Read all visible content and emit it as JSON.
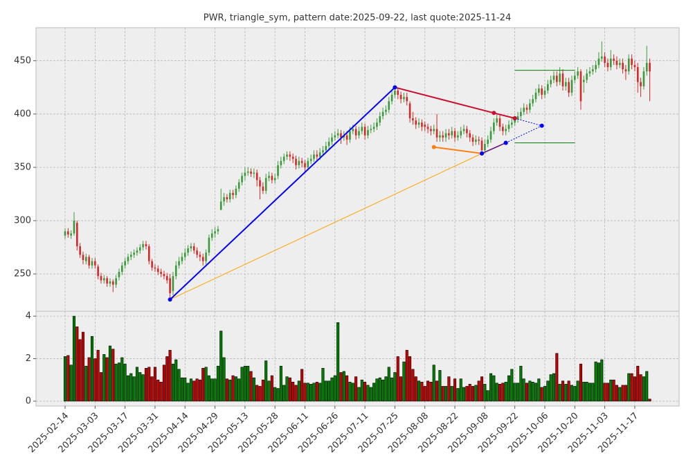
{
  "chart_data": {
    "type": "candlestick",
    "title": "PWR, triangle_sym, pattern date:2025-09-22, last quote:2025-11-24",
    "up_color": "#3a9a3a",
    "down_color": "#d62728",
    "volume_up_color": "#008000",
    "volume_down_color": "#cc0000",
    "grid": true,
    "xlim": [
      -9.7,
      204.8
    ],
    "xticks": [
      {
        "value": 0,
        "label": "2025-02-14"
      },
      {
        "value": 10,
        "label": "2025-03-03"
      },
      {
        "value": 20,
        "label": "2025-03-17"
      },
      {
        "value": 30,
        "label": "2025-03-31"
      },
      {
        "value": 40,
        "label": "2025-04-14"
      },
      {
        "value": 50,
        "label": "2025-04-29"
      },
      {
        "value": 60,
        "label": "2025-05-13"
      },
      {
        "value": 70,
        "label": "2025-05-28"
      },
      {
        "value": 80,
        "label": "2025-06-11"
      },
      {
        "value": 90,
        "label": "2025-06-26"
      },
      {
        "value": 100,
        "label": "2025-07-11"
      },
      {
        "value": 110,
        "label": "2025-07-25"
      },
      {
        "value": 120,
        "label": "2025-08-08"
      },
      {
        "value": 130,
        "label": "2025-08-22"
      },
      {
        "value": 140,
        "label": "2025-09-08"
      },
      {
        "value": 150,
        "label": "2025-09-22"
      },
      {
        "value": 160,
        "label": "2025-10-06"
      },
      {
        "value": 170,
        "label": "2025-10-20"
      },
      {
        "value": 180,
        "label": "2025-11-03"
      },
      {
        "value": 190,
        "label": "2025-11-17"
      }
    ],
    "ylim": [
      215,
      481
    ],
    "yticks": [
      250,
      300,
      350,
      400,
      450
    ],
    "volume_ylim": [
      -0.23,
      4.23
    ],
    "volume_yticks": [
      0,
      2,
      4
    ],
    "open": [
      286,
      290,
      286,
      288,
      298,
      276,
      268,
      262,
      266,
      258,
      262,
      257,
      248,
      244,
      246,
      241,
      243,
      240,
      247,
      252,
      258,
      262,
      266,
      268,
      270,
      272,
      275,
      278,
      276,
      262,
      256,
      255,
      252,
      250,
      248,
      246,
      234,
      248,
      258,
      262,
      266,
      270,
      274,
      276,
      272,
      268,
      266,
      262,
      270,
      284,
      288,
      290,
      310,
      318,
      322,
      320,
      326,
      324,
      330,
      336,
      342,
      345,
      346,
      344,
      345,
      338,
      332,
      328,
      340,
      342,
      338,
      342,
      352,
      356,
      360,
      362,
      360,
      358,
      352,
      356,
      354,
      350,
      356,
      358,
      362,
      360,
      364,
      366,
      370,
      374,
      378,
      380,
      382,
      378,
      380,
      376,
      384,
      386,
      380,
      384,
      388,
      380,
      385,
      386,
      388,
      392,
      398,
      402,
      404,
      412,
      418,
      422,
      418,
      414,
      416,
      410,
      396,
      394,
      390,
      392,
      390,
      388,
      386,
      384,
      386,
      378,
      380,
      378,
      382,
      380,
      384,
      378,
      380,
      384,
      386,
      382,
      378,
      374,
      376,
      375,
      366,
      372,
      376,
      384,
      392,
      396,
      388,
      384,
      386,
      390,
      392,
      395,
      398,
      402,
      406,
      404,
      410,
      414,
      420,
      424,
      418,
      422,
      428,
      432,
      436,
      430,
      438,
      426,
      430,
      420,
      432,
      436,
      440,
      430,
      432,
      438,
      440,
      442,
      446,
      452,
      454,
      448,
      444,
      452,
      450,
      446,
      448,
      442,
      440,
      452,
      446,
      444,
      430,
      426,
      440,
      448
    ],
    "high": [
      293,
      293,
      291,
      308,
      300,
      279,
      271,
      269,
      268,
      265,
      265,
      259,
      251,
      249,
      248,
      246,
      245,
      249,
      255,
      261,
      265,
      269,
      271,
      273,
      275,
      278,
      281,
      281,
      278,
      264,
      259,
      258,
      255,
      253,
      251,
      250,
      252,
      262,
      266,
      270,
      274,
      277,
      279,
      279,
      275,
      271,
      269,
      273,
      287,
      292,
      294,
      295,
      330,
      326,
      325,
      329,
      329,
      333,
      339,
      345,
      350,
      350,
      349,
      349,
      348,
      341,
      336,
      344,
      346,
      345,
      344,
      356,
      360,
      363,
      365,
      365,
      363,
      361,
      360,
      359,
      357,
      359,
      362,
      366,
      366,
      368,
      370,
      374,
      378,
      382,
      384,
      386,
      385,
      384,
      384,
      388,
      390,
      389,
      388,
      392,
      391,
      389,
      390,
      392,
      396,
      402,
      406,
      408,
      416,
      422,
      426,
      425,
      421,
      420,
      420,
      412,
      402,
      397,
      396,
      395,
      393,
      391,
      389,
      390,
      400,
      384,
      384,
      386,
      386,
      388,
      387,
      384,
      388,
      390,
      389,
      385,
      381,
      380,
      379,
      378,
      376,
      380,
      388,
      396,
      400,
      399,
      391,
      390,
      394,
      396,
      398,
      402,
      406,
      410,
      409,
      414,
      418,
      424,
      428,
      427,
      426,
      432,
      436,
      440,
      440,
      444,
      442,
      434,
      434,
      436,
      440,
      444,
      442,
      436,
      442,
      444,
      446,
      450,
      458,
      468,
      458,
      452,
      460,
      456,
      454,
      452,
      452,
      446,
      456,
      456,
      450,
      448,
      434,
      444,
      464,
      452
    ],
    "low": [
      283,
      284,
      283,
      286,
      272,
      265,
      259,
      259,
      255,
      255,
      255,
      245,
      241,
      241,
      238,
      238,
      233,
      237,
      244,
      249,
      255,
      259,
      263,
      265,
      267,
      269,
      272,
      273,
      259,
      253,
      252,
      249,
      247,
      245,
      241,
      226,
      230,
      245,
      255,
      259,
      263,
      267,
      271,
      269,
      265,
      262,
      258,
      259,
      267,
      281,
      284,
      287,
      310,
      314,
      317,
      317,
      320,
      321,
      327,
      333,
      338,
      342,
      341,
      340,
      332,
      320,
      325,
      325,
      337,
      335,
      335,
      339,
      349,
      353,
      357,
      356,
      354,
      348,
      349,
      350,
      346,
      347,
      353,
      355,
      357,
      357,
      361,
      363,
      367,
      371,
      375,
      377,
      372,
      375,
      371,
      373,
      381,
      376,
      377,
      381,
      376,
      377,
      382,
      383,
      385,
      389,
      395,
      399,
      401,
      409,
      415,
      414,
      410,
      411,
      408,
      392,
      390,
      386,
      387,
      384,
      384,
      382,
      380,
      381,
      374,
      374,
      374,
      374,
      376,
      377,
      374,
      375,
      377,
      381,
      378,
      374,
      370,
      371,
      371,
      362,
      363,
      369,
      373,
      381,
      389,
      384,
      380,
      380,
      383,
      387,
      389,
      392,
      395,
      399,
      400,
      401,
      407,
      411,
      417,
      414,
      415,
      419,
      425,
      429,
      426,
      427,
      422,
      422,
      416,
      417,
      429,
      433,
      404,
      420,
      429,
      435,
      437,
      439,
      443,
      449,
      444,
      440,
      441,
      446,
      442,
      443,
      438,
      432,
      437,
      442,
      440,
      420,
      416,
      423,
      436,
      412
    ],
    "close": [
      290,
      287,
      288,
      300,
      276,
      268,
      263,
      266,
      258,
      262,
      258,
      248,
      244,
      246,
      241,
      243,
      240,
      246,
      252,
      258,
      262,
      266,
      268,
      270,
      272,
      275,
      278,
      276,
      262,
      256,
      255,
      252,
      250,
      248,
      244,
      232,
      248,
      258,
      262,
      266,
      270,
      274,
      276,
      272,
      268,
      266,
      262,
      270,
      284,
      288,
      290,
      292,
      318,
      322,
      320,
      326,
      324,
      330,
      336,
      342,
      345,
      346,
      344,
      345,
      338,
      332,
      328,
      340,
      342,
      338,
      340,
      352,
      356,
      360,
      362,
      360,
      358,
      352,
      356,
      354,
      350,
      356,
      358,
      362,
      360,
      364,
      366,
      370,
      374,
      378,
      380,
      382,
      378,
      380,
      376,
      384,
      386,
      380,
      384,
      388,
      380,
      385,
      386,
      388,
      392,
      398,
      402,
      404,
      412,
      418,
      422,
      418,
      414,
      416,
      412,
      396,
      394,
      390,
      392,
      388,
      388,
      386,
      384,
      386,
      378,
      380,
      378,
      382,
      380,
      384,
      378,
      380,
      384,
      386,
      382,
      378,
      374,
      376,
      375,
      366,
      372,
      376,
      384,
      392,
      396,
      388,
      384,
      386,
      390,
      392,
      395,
      398,
      402,
      406,
      404,
      410,
      414,
      420,
      424,
      418,
      422,
      428,
      432,
      436,
      430,
      438,
      426,
      430,
      420,
      432,
      436,
      440,
      412,
      432,
      438,
      440,
      442,
      446,
      452,
      454,
      448,
      444,
      452,
      450,
      446,
      448,
      442,
      440,
      452,
      446,
      444,
      430,
      426,
      440,
      448,
      440
    ],
    "volume": [
      2.1,
      2.15,
      1.7,
      4.0,
      3.5,
      2.9,
      3.25,
      1.65,
      2.05,
      3.05,
      2.0,
      2.4,
      1.35,
      2.2,
      2.05,
      2.6,
      2.45,
      1.75,
      1.8,
      2.05,
      1.75,
      1.2,
      1.3,
      1.15,
      1.6,
      1.35,
      1.25,
      1.55,
      1.6,
      1.15,
      1.6,
      1.0,
      0.9,
      1.7,
      2.1,
      2.4,
      1.75,
      1.95,
      1.5,
      1.1,
      1.1,
      0.85,
      1.05,
      0.95,
      1.05,
      1.0,
      1.55,
      1.6,
      1.2,
      1.05,
      1.05,
      1.65,
      3.3,
      2.05,
      1.05,
      1.0,
      1.2,
      1.15,
      1.05,
      1.6,
      1.65,
      1.65,
      1.4,
      1.1,
      0.75,
      0.7,
      1.0,
      1.9,
      0.95,
      1.2,
      0.65,
      0.6,
      1.65,
      0.75,
      1.15,
      1.1,
      0.9,
      0.75,
      0.95,
      1.5,
      0.85,
      0.85,
      0.8,
      0.85,
      0.9,
      0.85,
      1.55,
      0.95,
      0.95,
      1.1,
      1.2,
      3.7,
      1.35,
      1.4,
      1.2,
      0.9,
      0.85,
      1.15,
      0.65,
      1.0,
      0.9,
      0.75,
      0.65,
      0.85,
      1.05,
      1.1,
      1.0,
      1.15,
      1.6,
      1.1,
      1.35,
      2.1,
      1.15,
      1.85,
      2.4,
      2.1,
      1.5,
      1.15,
      0.95,
      0.9,
      0.7,
      0.95,
      0.9,
      1.7,
      0.95,
      1.45,
      0.7,
      0.7,
      1.15,
      0.7,
      1.05,
      0.6,
      1.05,
      0.65,
      0.7,
      0.8,
      0.7,
      0.75,
      0.95,
      1.15,
      0.8,
      0.5,
      1.3,
      1.2,
      0.85,
      0.8,
      0.85,
      0.9,
      1.2,
      1.5,
      0.85,
      0.85,
      1.65,
      1.05,
      0.85,
      0.95,
      0.9,
      0.85,
      1.05,
      0.65,
      0.7,
      0.95,
      1.25,
      1.3,
      2.25,
      0.8,
      0.95,
      0.8,
      0.95,
      0.75,
      0.7,
      0.95,
      1.75,
      0.9,
      0.9,
      0.85,
      0.85,
      1.85,
      1.8,
      1.95,
      0.85,
      0.85,
      1.0,
      1.0,
      0.75,
      0.65,
      0.75,
      0.75,
      1.3,
      1.3,
      1.15,
      1.65,
      1.25,
      1.15,
      1.4,
      0.1
    ],
    "overlays": [
      {
        "color": "#ffa500",
        "width": 1,
        "dashed": false,
        "markers": false,
        "x": [
          35,
          139
        ],
        "y": [
          226,
          363
        ]
      },
      {
        "color": "#ff7f0e",
        "width": 2,
        "dashed": false,
        "markers": true,
        "x": [
          123,
          139,
          147
        ],
        "y": [
          369,
          363,
          373
        ]
      },
      {
        "color": "#0000ff",
        "width": 1,
        "dashed": true,
        "markers": true,
        "x": [
          150,
          159,
          147
        ],
        "y": [
          396,
          389,
          373
        ]
      },
      {
        "color": "#c8102e",
        "width": 2,
        "dashed": false,
        "markers": true,
        "x": [
          110,
          143,
          150
        ],
        "y": [
          425,
          401,
          396
        ]
      },
      {
        "color": "#0000ff",
        "width": 2,
        "dashed": false,
        "markers": true,
        "x": [
          35,
          110
        ],
        "y": [
          226,
          425
        ]
      },
      {
        "color": "#0000ff",
        "width": 1,
        "dashed": false,
        "markers": true,
        "x": [
          139,
          147
        ],
        "y": [
          363,
          373
        ]
      },
      {
        "color": "#008000",
        "width": 1,
        "dashed": false,
        "markers": false,
        "x": [
          150,
          170
        ],
        "y": [
          441,
          441
        ]
      },
      {
        "color": "#008000",
        "width": 1,
        "dashed": false,
        "markers": false,
        "x": [
          150,
          170
        ],
        "y": [
          373,
          373
        ]
      }
    ]
  }
}
